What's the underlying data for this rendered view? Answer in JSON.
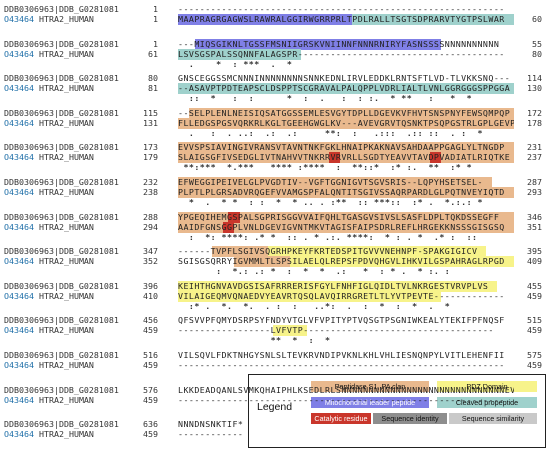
{
  "names": {
    "query": "DDB0306963|DDB_G0281081",
    "subject_id": "O43464",
    "subject_rest": " HTRA2_HUMAN"
  },
  "colors": {
    "peptidase": "#e9b98e",
    "pdz": "#f7f38a",
    "leader": "#7f7fe6",
    "propeptide": "#9fd1cc",
    "catalytic": "#c9362b",
    "identity": "#8e8e8e",
    "similarity": "#c9c9c9"
  },
  "legend": {
    "title": "Legend",
    "items": [
      {
        "label": "Peptidase S1, PA clan",
        "color_key": "peptidase",
        "text_color": "#111111"
      },
      {
        "label": "PDZ Domain",
        "color_key": "pdz",
        "text_color": "#111111"
      },
      {
        "label": "Mitochondrial leader peptide",
        "color_key": "leader",
        "text_color": "#ffffff"
      },
      {
        "label": "Cleaved propeptide",
        "color_key": "propeptide",
        "text_color": "#111111"
      },
      {
        "label": "Catalytic residue",
        "color_key": "catalytic",
        "text_color": "#ffffff"
      },
      {
        "label": "Sequence identity",
        "color_key": "identity",
        "text_color": "#111111"
      },
      {
        "label": "Sequence similarity",
        "color_key": "similarity",
        "text_color": "#111111"
      }
    ]
  },
  "blocks": [
    {
      "q": {
        "start": "1",
        "end": "",
        "seq": "------------------------------------------------------------",
        "hl": []
      },
      "s": {
        "start": "1",
        "end": "60",
        "seq": "MAAPRAGRGAGWSLRAWRALGGIRWGRRPRLTPDLRALLTSGTSDPRARVTYGTPSLWAR",
        "hl": [
          {
            "from": 0,
            "to": 31,
            "color": "leader"
          },
          {
            "from": 31,
            "to": 60,
            "color": "propeptide"
          }
        ]
      },
      "cons": ""
    },
    {
      "q": {
        "start": "1",
        "end": "55",
        "seq": "---MIQSGIKNLTGSSFMSNIIGRSKVNIINNFNNNRNIRYFASNSSSSNNNNNNNNNN",
        "hl": [
          {
            "from": 3,
            "to": 47,
            "color": "leader"
          }
        ]
      },
      "s": {
        "start": "61",
        "end": "80",
        "seq": "LSVSGSPALSSQNNFALAGSPR--------------------------------------",
        "hl": [
          {
            "from": 0,
            "to": 22,
            "color": "propeptide"
          }
        ]
      },
      "cons": "  .    *  : ***  .  *"
    },
    {
      "q": {
        "start": "80",
        "end": "114",
        "seq": "GNSCEGGSSMCNNNINNNNNNNNSNNKEDNLIRVLEDDKLRNTSFTLVD-TLVKKSNQ---",
        "hl": []
      },
      "s": {
        "start": "81",
        "end": "130",
        "seq": "--ASAVPTPDTEAPSCLDSPPTSCGRAVALPALQPPLVDRLIALTLVNLGGRGGGSPPGGA",
        "hl": [
          {
            "from": 0,
            "to": 61,
            "color": "propeptide"
          }
        ]
      },
      "cons": "  ::  *   :  :      *  :  .   :  : :.  * **   :   *  *"
    },
    {
      "q": {
        "start": "115",
        "end": "172",
        "seq": "--SELPLENLNEISIQSATGGSSEMLESVGYTDPLLDGEVKVFHVTSNSPNYFEWSQMPQP",
        "hl": [
          {
            "from": 2,
            "to": 61,
            "color": "peptidase"
          }
        ]
      },
      "s": {
        "start": "131",
        "end": "178",
        "seq": "FLLEDGSPGSVQRKRLKGLTGEEHGWGLKV---AVEVGRVTQSNKTPSQPGSTRLGPLGEVP",
        "hl": [
          {
            "from": 0,
            "to": 62,
            "color": "peptidase"
          }
        ]
      },
      "cons": "  .   :  . ..:  .:  .:     **:  :   .:::  .:: ::  . :  *"
    },
    {
      "q": {
        "start": "173",
        "end": "231",
        "seq": "EVVSPSIAVINGIVRANSVTAVNTNKFGKLHNAIPKAKNAVSAHDAAPPGAGLYLTNGDP",
        "hl": [
          {
            "from": 0,
            "to": 60,
            "color": "peptidase"
          }
        ]
      },
      "s": {
        "start": "179",
        "end": "237",
        "seq": "SLAIGSGFIVSEDGLIVTNAHVVTNKRRVRVRLLSGDTYEAVVTAVDPVADIATLRIQTKE",
        "hl": [
          {
            "from": 0,
            "to": 61,
            "color": "peptidase"
          },
          {
            "from": 27,
            "to": 29,
            "color": "catalytic"
          },
          {
            "from": 45,
            "to": 47,
            "color": "catalytic"
          }
        ]
      },
      "cons": " **:***  *.***   **** :****  :  **::*  :* :.  **  :* *"
    },
    {
      "q": {
        "start": "232",
        "end": "287",
        "seq": "EFWEGGIPEIVELGLPVGDTIV--VGFTGGNIGVTSGVSRIS--LQPYHSETSEL-",
        "hl": [
          {
            "from": 0,
            "to": 56,
            "color": "peptidase"
          }
        ]
      },
      "s": {
        "start": "238",
        "end": "293",
        "seq": "PLPTLPLGRSADVRQGEFVVAMGSPFALQNTITSGIVSSAQRPARDLGLPQTNVEYIQTD",
        "hl": [
          {
            "from": 0,
            "to": 60,
            "color": "peptidase"
          }
        ]
      },
      "cons": "  *  .  * *  : :  *  * .. . :**  :: ***::  :* .  *.:.: *"
    },
    {
      "q": {
        "start": "288",
        "end": "346",
        "seq": "YPGEQIHEMGSPALSGPRISGGVVAIFQHLTGASGVSIVSLSASFLDPLTQKDSSEGFF",
        "hl": [
          {
            "from": 0,
            "to": 60,
            "color": "peptidase"
          },
          {
            "from": 9,
            "to": 11,
            "color": "catalytic"
          }
        ]
      },
      "s": {
        "start": "294",
        "end": "351",
        "seq": "AAIDFGNSGGPLVNLDGEVIGVNTMKVTAGISFAIPSDRLREFLHRGEKKNSSSGISGSQ",
        "hl": [
          {
            "from": 0,
            "to": 60,
            "color": "peptidase"
          },
          {
            "from": 8,
            "to": 10,
            "color": "catalytic"
          }
        ]
      },
      "cons": "  :  *: ****: .* *  :: . * .:. ****:  * : . *  .* :  ::"
    },
    {
      "q": {
        "start": "347",
        "end": "395",
        "seq": "------TVPFLSGIVSQGRHPKEYFKRTEDSPITGVVVNEHNPF-SPAKGIGICV",
        "hl": [
          {
            "from": 6,
            "to": 16,
            "color": "peptidase"
          },
          {
            "from": 16,
            "to": 55,
            "color": "pdz"
          }
        ]
      },
      "s": {
        "start": "352",
        "end": "409",
        "seq": "SGISGSQRRYIGVMMLTLSPSILAELQLREPSFPDVQHGVLIHKVILGSPAHRAGLRPGD",
        "hl": [
          {
            "from": 10,
            "to": 20,
            "color": "peptidase"
          },
          {
            "from": 20,
            "to": 60,
            "color": "pdz"
          }
        ]
      },
      "cons": "       :  *.: .: *  :  *  *  .:   *  : * .  * :. :"
    },
    {
      "q": {
        "start": "396",
        "end": "455",
        "seq": "KEIHTHGNVAVDGSISAFRRRERISFGYLFNHFIGLQIDLTVLNKRGESTVRVPLVS",
        "hl": [
          {
            "from": 0,
            "to": 57,
            "color": "pdz"
          }
        ]
      },
      "s": {
        "start": "410",
        "end": "459",
        "seq": "VILAIGEQMVQNAEDVYEAVRTQSQLAVQIRRGRETLTLYVTPEVTE-------------",
        "hl": [
          {
            "from": 0,
            "to": 47,
            "color": "pdz"
          }
        ]
      },
      "cons": "  :* .  *.  *.  . :  :   ..*:  .  :  *  :  *  .  *"
    },
    {
      "q": {
        "start": "456",
        "end": "515",
        "seq": "QFSVVPFQMYDSRPSYFNDYVTGLVFVPITYPTVQSGTPSGNIWKEALYTEKIFPFNQSF",
        "hl": []
      },
      "s": {
        "start": "459",
        "end": "459",
        "seq": "-----------------LVFVTP-----------------------------------",
        "hl": [
          {
            "from": 17,
            "to": 23,
            "color": "pdz"
          }
        ]
      },
      "cons": "                 **  *  :  *"
    },
    {
      "q": {
        "start": "516",
        "end": "575",
        "seq": "VILSQVLFDKTNHGYSNLSLTEVKRVNDIPVKNLKHLVHLIESNQNPYLVITLEHENFII",
        "hl": []
      },
      "s": {
        "start": "459",
        "end": "459",
        "seq": "------------------------------------------------------------",
        "hl": []
      },
      "cons": ""
    },
    {
      "q": {
        "start": "576",
        "end": "635",
        "seq": "LKKDEADQANLSVMKQHAIPHLKSEDLRLSNNNNNNNNNNNNNNNNNNNNNNNNNNNNNNEV",
        "hl": []
      },
      "s": {
        "start": "459",
        "end": "459",
        "seq": "------------------------------------------------------------",
        "hl": []
      },
      "cons": ""
    },
    {
      "q": {
        "start": "636",
        "end": "648",
        "seq": "NNNDNSNKTIF*",
        "hl": []
      },
      "s": {
        "start": "459",
        "end": "459",
        "seq": "------------",
        "hl": []
      },
      "cons": ""
    }
  ]
}
